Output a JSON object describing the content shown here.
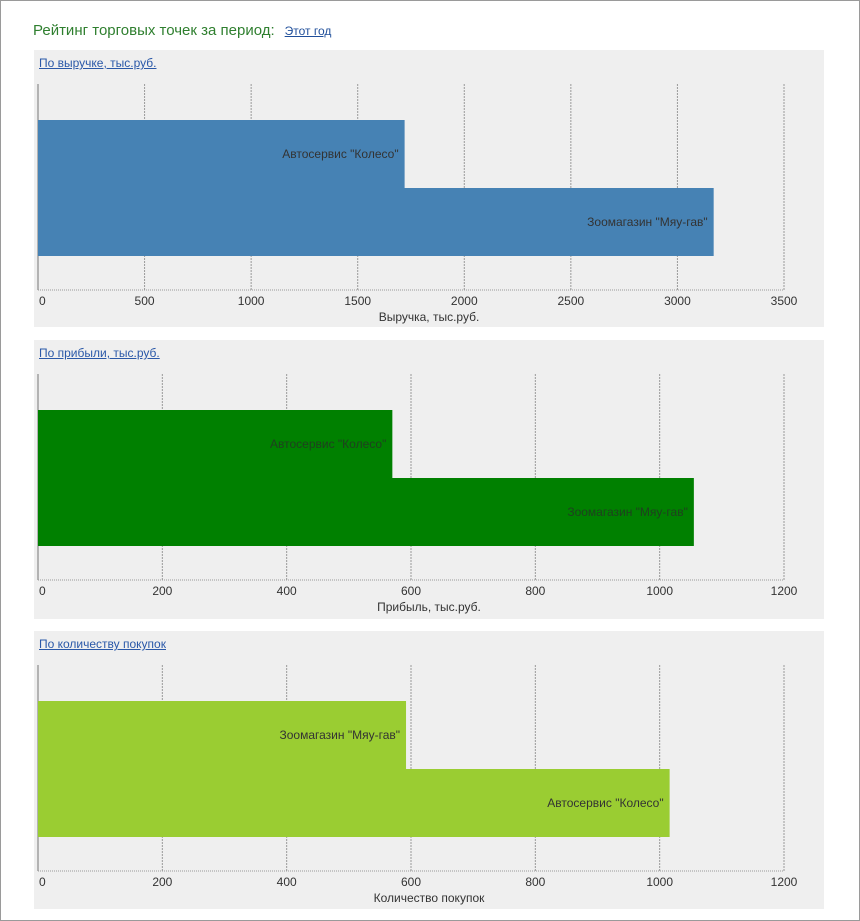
{
  "header": {
    "title": "Рейтинг торговых точек за период:",
    "period_link": "Этот год"
  },
  "colors": {
    "revenue_bar": "#4682b4",
    "profit_bar": "#008000",
    "purchases_bar": "#9acd32",
    "title_green": "#2f7f2f",
    "link_blue": "#2a58a8",
    "panel_bg": "#efefef"
  },
  "chart_data": [
    {
      "type": "bar",
      "orientation": "horizontal",
      "link_label": "По выручке, тыс.руб.",
      "xlabel": "Выручка, тыс.руб.",
      "xlim": [
        0,
        3500
      ],
      "ticks": [
        0,
        500,
        1000,
        1500,
        2000,
        2500,
        3000,
        3500
      ],
      "grid": true,
      "categories": [
        "Автосервис \"Колесо\"",
        "Зоомагазин \"Мяу-гав\""
      ],
      "values": [
        1720,
        3170
      ],
      "color": "#4682b4",
      "label_color": "#333333"
    },
    {
      "type": "bar",
      "orientation": "horizontal",
      "link_label": "По прибыли, тыс.руб.",
      "xlabel": "Прибыль, тыс.руб.",
      "xlim": [
        0,
        1200
      ],
      "ticks": [
        0,
        200,
        400,
        600,
        800,
        1000,
        1200
      ],
      "grid": true,
      "categories": [
        "Автосервис \"Колесо\"",
        "Зоомагазин \"Мяу-гав\""
      ],
      "values": [
        570,
        1055
      ],
      "color": "#008000",
      "label_color": "#1f3f1f"
    },
    {
      "type": "bar",
      "orientation": "horizontal",
      "link_label": "По количеству покупок",
      "xlabel": "Количество покупок",
      "xlim": [
        0,
        1200
      ],
      "ticks": [
        0,
        200,
        400,
        600,
        800,
        1000,
        1200
      ],
      "grid": true,
      "categories": [
        "Зоомагазин \"Мяу-гав\"",
        "Автосервис \"Колесо\""
      ],
      "values": [
        592,
        1016
      ],
      "color": "#9acd32",
      "label_color": "#333333"
    }
  ]
}
